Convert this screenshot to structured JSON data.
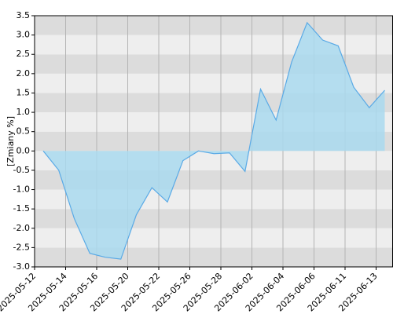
{
  "chart_data": {
    "type": "area",
    "y_label": "[Zmiany %]",
    "xticks": [
      "2025-05-12",
      "2025-05-14",
      "2025-05-16",
      "2025-05-20",
      "2025-05-22",
      "2025-05-26",
      "2025-05-28",
      "2025-06-02",
      "2025-06-04",
      "2025-06-06",
      "2025-06-11",
      "2025-06-13"
    ],
    "values": [
      0.0,
      -0.5,
      -1.75,
      -2.65,
      -2.75,
      -2.8,
      -1.65,
      -0.95,
      -1.32,
      -0.25,
      0.0,
      -0.07,
      -0.05,
      -0.53,
      1.6,
      0.8,
      2.3,
      3.32,
      2.87,
      2.72,
      1.65,
      1.12,
      1.57
    ],
    "color": "#5aaae6",
    "fill": "#a9d9ee",
    "ylim": [
      -3.0,
      3.5
    ],
    "yticks": [
      {
        "value": -3.0,
        "label": "-3.0"
      },
      -2.5,
      {
        "value": -2.0,
        "label": "-2.0"
      },
      -1.5,
      {
        "value": -1.0,
        "label": "-1.0"
      },
      -0.5,
      {
        "value": 0.0,
        "label": "0.0"
      },
      0.5,
      {
        "value": 1.0,
        "label": "1.0"
      },
      1.5,
      {
        "value": 2.0,
        "label": "2.0"
      },
      2.5,
      {
        "value": 3.0,
        "label": "3.0"
      },
      3.5
    ],
    "grid": true
  }
}
